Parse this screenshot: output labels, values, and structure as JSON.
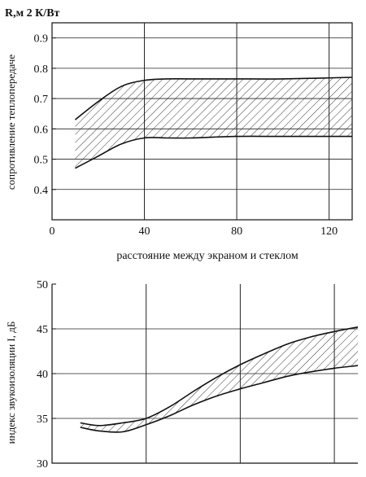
{
  "chart_data": [
    {
      "type": "area",
      "title": "",
      "corner_label": "R,м 2 К/Вт",
      "ylabel": "сопротивление теплопередаче",
      "xlabel": "расстояние между экраном и стеклом",
      "xlim": [
        0,
        130
      ],
      "ylim": [
        0.3,
        0.95
      ],
      "xticks": [
        "0",
        "40",
        "80",
        "120"
      ],
      "yticks": [
        "0.4",
        "0.5",
        "0.6",
        "0.7",
        "0.8",
        "0.9"
      ],
      "grid": true,
      "series": [
        {
          "name": "upper",
          "x": [
            10,
            20,
            30,
            40,
            50,
            60,
            80,
            100,
            130
          ],
          "values": [
            0.63,
            0.69,
            0.74,
            0.76,
            0.765,
            0.765,
            0.765,
            0.765,
            0.77
          ]
        },
        {
          "name": "lower",
          "x": [
            10,
            20,
            30,
            40,
            50,
            60,
            80,
            100,
            130
          ],
          "values": [
            0.47,
            0.51,
            0.55,
            0.57,
            0.57,
            0.57,
            0.575,
            0.575,
            0.575
          ]
        }
      ],
      "band_between": [
        "upper",
        "lower"
      ],
      "hatch": true
    },
    {
      "type": "area",
      "title": "",
      "ylabel": "индекс звукоизоляции I, дБ",
      "xlabel": "",
      "xlim": [
        0,
        130
      ],
      "ylim": [
        30,
        50
      ],
      "xticks": [],
      "yticks": [
        "30",
        "35",
        "40",
        "45",
        "50"
      ],
      "grid": true,
      "series": [
        {
          "name": "upper",
          "x": [
            12,
            20,
            30,
            40,
            50,
            60,
            70,
            80,
            90,
            100,
            110,
            120,
            130
          ],
          "values": [
            34.5,
            34.2,
            34.5,
            35.0,
            36.3,
            38.0,
            39.6,
            41.0,
            42.2,
            43.3,
            44.1,
            44.7,
            45.2
          ]
        },
        {
          "name": "lower",
          "x": [
            12,
            20,
            30,
            40,
            50,
            60,
            70,
            80,
            90,
            100,
            110,
            120,
            130
          ],
          "values": [
            34.0,
            33.6,
            33.5,
            34.3,
            35.3,
            36.5,
            37.5,
            38.3,
            39.0,
            39.7,
            40.2,
            40.6,
            40.9
          ]
        }
      ],
      "band_between": [
        "upper",
        "lower"
      ],
      "hatch": true
    }
  ]
}
